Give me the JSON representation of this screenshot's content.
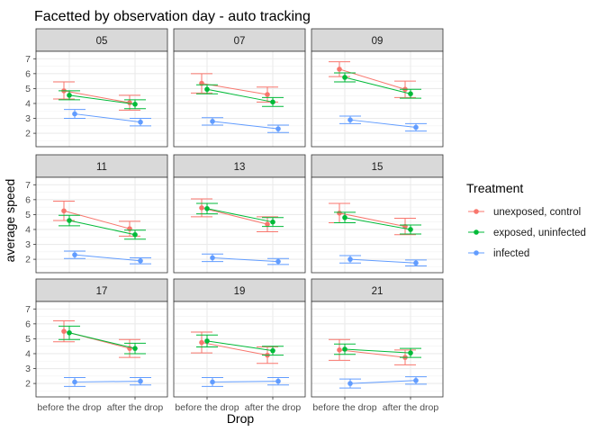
{
  "chart_data": {
    "type": "scatter",
    "title": "Facetted by observation day - auto tracking",
    "xlabel": "Drop",
    "ylabel": "average speed",
    "categories": [
      "before the drop",
      "after the drop"
    ],
    "ylim": [
      1.1,
      7.5
    ],
    "yticks": [
      2,
      3,
      4,
      5,
      6,
      7
    ],
    "grid": true,
    "legend": {
      "title": "Treatment",
      "position": "right",
      "entries": [
        "unexposed, control",
        "exposed, uninfected",
        "infected"
      ]
    },
    "series_colors": {
      "unexposed, control": "#F8766D",
      "exposed, uninfected": "#00BA38",
      "infected": "#619CFF"
    },
    "facets": [
      {
        "label": "05",
        "series": [
          {
            "name": "unexposed, control",
            "values": [
              4.85,
              4.05
            ],
            "err": [
              [
                4.3,
                5.45
              ],
              [
                3.55,
                4.55
              ]
            ]
          },
          {
            "name": "exposed, uninfected",
            "values": [
              4.55,
              3.95
            ],
            "err": [
              [
                4.25,
                4.85
              ],
              [
                3.65,
                4.25
              ]
            ]
          },
          {
            "name": "infected",
            "values": [
              3.3,
              2.75
            ],
            "err": [
              [
                3.0,
                3.6
              ],
              [
                2.5,
                3.0
              ]
            ]
          }
        ]
      },
      {
        "label": "07",
        "series": [
          {
            "name": "unexposed, control",
            "values": [
              5.35,
              4.6
            ],
            "err": [
              [
                4.7,
                6.0
              ],
              [
                4.1,
                5.1
              ]
            ]
          },
          {
            "name": "exposed, uninfected",
            "values": [
              4.95,
              4.1
            ],
            "err": [
              [
                4.65,
                5.25
              ],
              [
                3.8,
                4.4
              ]
            ]
          },
          {
            "name": "infected",
            "values": [
              2.8,
              2.3
            ],
            "err": [
              [
                2.55,
                3.05
              ],
              [
                2.05,
                2.55
              ]
            ]
          }
        ]
      },
      {
        "label": "09",
        "series": [
          {
            "name": "unexposed, control",
            "values": [
              6.3,
              4.95
            ],
            "err": [
              [
                5.8,
                6.8
              ],
              [
                4.4,
                5.5
              ]
            ]
          },
          {
            "name": "exposed, uninfected",
            "values": [
              5.75,
              4.65
            ],
            "err": [
              [
                5.45,
                6.05
              ],
              [
                4.35,
                4.95
              ]
            ]
          },
          {
            "name": "infected",
            "values": [
              2.9,
              2.4
            ],
            "err": [
              [
                2.65,
                3.15
              ],
              [
                2.15,
                2.65
              ]
            ]
          }
        ]
      },
      {
        "label": "11",
        "series": [
          {
            "name": "unexposed, control",
            "values": [
              5.25,
              4.05
            ],
            "err": [
              [
                4.6,
                5.9
              ],
              [
                3.55,
                4.55
              ]
            ]
          },
          {
            "name": "exposed, uninfected",
            "values": [
              4.6,
              3.65
            ],
            "err": [
              [
                4.25,
                4.95
              ],
              [
                3.35,
                3.95
              ]
            ]
          },
          {
            "name": "infected",
            "values": [
              2.3,
              1.9
            ],
            "err": [
              [
                2.05,
                2.55
              ],
              [
                1.7,
                2.1
              ]
            ]
          }
        ]
      },
      {
        "label": "13",
        "series": [
          {
            "name": "unexposed, control",
            "values": [
              5.45,
              4.35
            ],
            "err": [
              [
                4.85,
                6.05
              ],
              [
                3.85,
                4.85
              ]
            ]
          },
          {
            "name": "exposed, uninfected",
            "values": [
              5.4,
              4.5
            ],
            "err": [
              [
                5.05,
                5.75
              ],
              [
                4.2,
                4.8
              ]
            ]
          },
          {
            "name": "infected",
            "values": [
              2.1,
              1.85
            ],
            "err": [
              [
                1.85,
                2.35
              ],
              [
                1.65,
                2.05
              ]
            ]
          }
        ]
      },
      {
        "label": "15",
        "series": [
          {
            "name": "unexposed, control",
            "values": [
              5.1,
              4.2
            ],
            "err": [
              [
                4.45,
                5.75
              ],
              [
                3.65,
                4.75
              ]
            ]
          },
          {
            "name": "exposed, uninfected",
            "values": [
              4.8,
              4.0
            ],
            "err": [
              [
                4.45,
                5.15
              ],
              [
                3.7,
                4.3
              ]
            ]
          },
          {
            "name": "infected",
            "values": [
              2.0,
              1.75
            ],
            "err": [
              [
                1.75,
                2.25
              ],
              [
                1.55,
                1.95
              ]
            ]
          }
        ]
      },
      {
        "label": "17",
        "series": [
          {
            "name": "unexposed, control",
            "values": [
              5.5,
              4.35
            ],
            "err": [
              [
                4.8,
                6.2
              ],
              [
                3.75,
                4.95
              ]
            ]
          },
          {
            "name": "exposed, uninfected",
            "values": [
              5.4,
              4.35
            ],
            "err": [
              [
                4.95,
                5.85
              ],
              [
                4.0,
                4.7
              ]
            ]
          },
          {
            "name": "infected",
            "values": [
              2.1,
              2.15
            ],
            "err": [
              [
                1.8,
                2.4
              ],
              [
                1.9,
                2.4
              ]
            ]
          }
        ]
      },
      {
        "label": "19",
        "series": [
          {
            "name": "unexposed, control",
            "values": [
              4.75,
              3.9
            ],
            "err": [
              [
                4.05,
                5.45
              ],
              [
                3.35,
                4.45
              ]
            ]
          },
          {
            "name": "exposed, uninfected",
            "values": [
              4.85,
              4.2
            ],
            "err": [
              [
                4.45,
                5.25
              ],
              [
                3.9,
                4.5
              ]
            ]
          },
          {
            "name": "infected",
            "values": [
              2.1,
              2.15
            ],
            "err": [
              [
                1.8,
                2.4
              ],
              [
                1.9,
                2.4
              ]
            ]
          }
        ]
      },
      {
        "label": "21",
        "series": [
          {
            "name": "unexposed, control",
            "values": [
              4.25,
              3.75
            ],
            "err": [
              [
                3.55,
                4.95
              ],
              [
                3.25,
                4.25
              ]
            ]
          },
          {
            "name": "exposed, uninfected",
            "values": [
              4.3,
              4.05
            ],
            "err": [
              [
                3.95,
                4.65
              ],
              [
                3.75,
                4.35
              ]
            ]
          },
          {
            "name": "infected",
            "values": [
              2.0,
              2.2
            ],
            "err": [
              [
                1.7,
                2.3
              ],
              [
                1.95,
                2.45
              ]
            ]
          }
        ]
      }
    ]
  }
}
